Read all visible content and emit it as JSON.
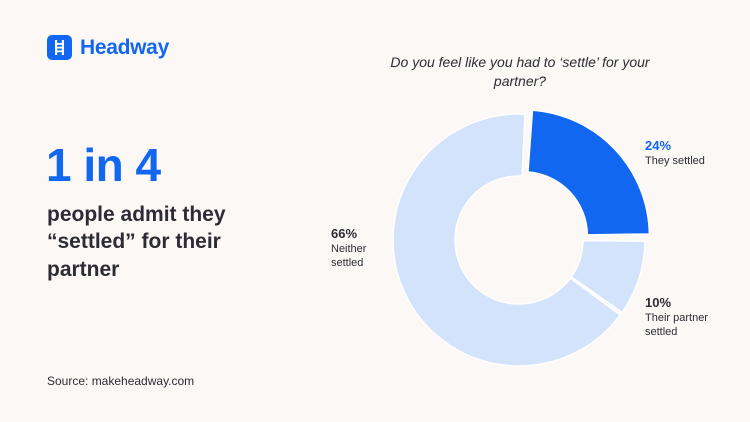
{
  "brand": {
    "name": "Headway"
  },
  "headline": "1 in 4",
  "subheadline": "people admit they “settled” for their partner",
  "source": "Source: makeheadway.com",
  "colors": {
    "accent": "#1267f0",
    "light": "#d3e3fb",
    "text": "#2c2c35",
    "background": "#fcf8f5"
  },
  "chart_data": {
    "type": "pie",
    "title": "Do you feel like you had to ‘settle’ for your partner?",
    "slices": [
      {
        "pct": "24%",
        "value": 24,
        "label": "They settled",
        "color": "#1267f0"
      },
      {
        "pct": "10%",
        "value": 10,
        "label": "Their partner settled",
        "color": "#d3e3fb"
      },
      {
        "pct": "66%",
        "value": 66,
        "label": "Neither settled",
        "color": "#d3e3fb"
      }
    ]
  }
}
